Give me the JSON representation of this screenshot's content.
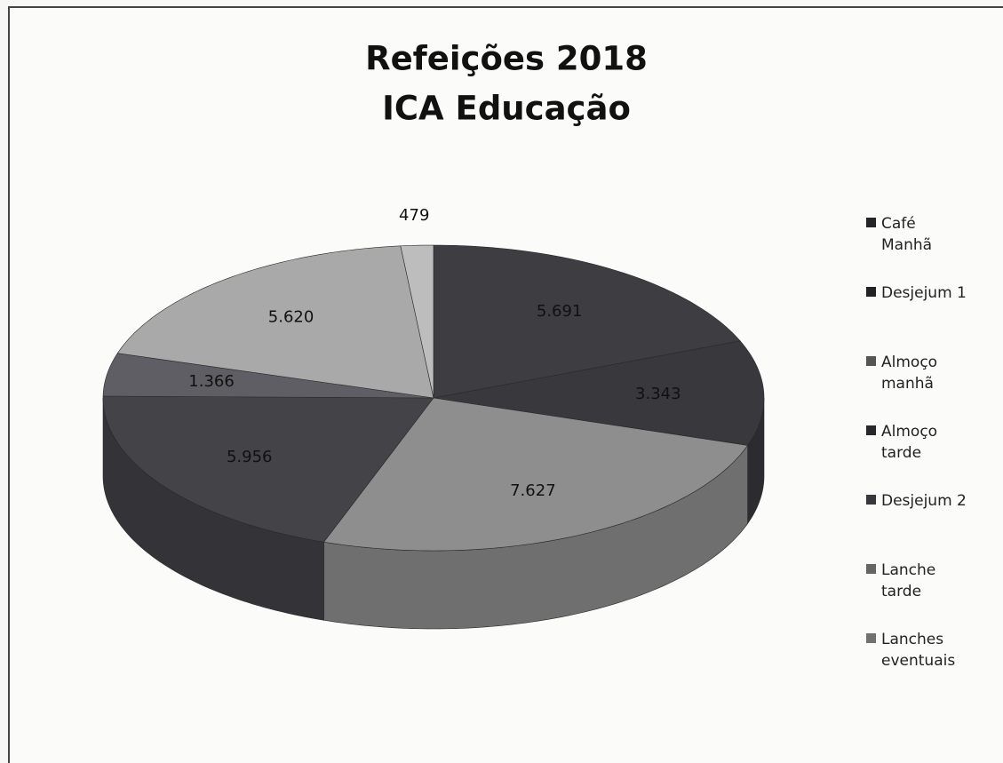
{
  "chart_data": {
    "type": "pie3d",
    "title": "Refeições 2018",
    "subtitle": "ICA Educação",
    "categories": [
      "Café Manhã",
      "Desjejum 1",
      "Almoço manhã",
      "Almoço tarde",
      "Desjejum 2",
      "Lanche tarde",
      "Lanches eventuais"
    ],
    "values": [
      5691,
      3343,
      7627,
      5956,
      1366,
      5620,
      479
    ],
    "value_labels": [
      "5.691",
      "3.343",
      "7.627",
      "5.956",
      "1.366",
      "5.620",
      "479"
    ],
    "colors": [
      "#3d3d42",
      "#38383d",
      "#8e8e8e",
      "#434348",
      "#5e5e64",
      "#a9a9a9",
      "#bdbdbd"
    ],
    "legend": "right"
  }
}
